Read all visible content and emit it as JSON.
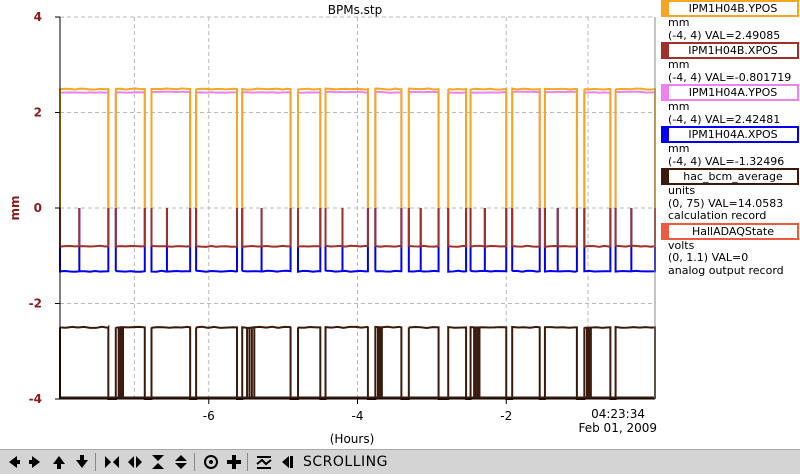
{
  "window": {
    "title": "BPMs.stp"
  },
  "chart_data": {
    "type": "line",
    "title": "BPMs.stp",
    "xlabel": "(Hours)",
    "ylabel": "mm",
    "xlim": [
      -8,
      0
    ],
    "ylim": [
      -4,
      4
    ],
    "x_ticks": [
      -6,
      -4,
      -2
    ],
    "x_tick_labels": [
      "-6",
      "-4",
      "-2"
    ],
    "y_ticks": [
      -4,
      -2,
      0,
      2,
      4
    ],
    "y_tick_labels": [
      "-4",
      "-2",
      "0",
      "2",
      "4"
    ],
    "timestamp_time": "04:23:34",
    "timestamp_date": "Feb 01, 2009",
    "grid": true,
    "segments": [
      [
        -8.0,
        -7.35
      ],
      [
        -7.25,
        -6.86
      ],
      [
        -6.77,
        -6.25
      ],
      [
        -6.17,
        -5.62
      ],
      [
        -5.55,
        -4.9
      ],
      [
        -4.8,
        -4.5
      ],
      [
        -4.43,
        -3.86
      ],
      [
        -3.76,
        -3.41
      ],
      [
        -3.31,
        -2.91
      ],
      [
        -2.78,
        -2.54
      ],
      [
        -2.48,
        -2.0
      ],
      [
        -1.92,
        -1.55
      ],
      [
        -1.48,
        -1.05
      ],
      [
        -0.95,
        -0.6
      ],
      [
        -0.53,
        0.0
      ]
    ],
    "series": [
      {
        "name": "IPM1H04B.YPOS",
        "color": "#f5a623",
        "on_value": 2.49085,
        "off_value": 0,
        "drop_type": "gap",
        "value": "2.49085"
      },
      {
        "name": "IPM1H04B.XPOS",
        "color": "#a0302a",
        "on_value": -0.801719,
        "off_value": 0,
        "drop_type": "spike",
        "value": "-0.801719"
      },
      {
        "name": "IPM1H04A.YPOS",
        "color": "#ee82ee",
        "on_value": 2.42481,
        "off_value": 0,
        "drop_type": "gap",
        "value": "2.42481"
      },
      {
        "name": "IPM1H04A.XPOS",
        "color": "#0000ee",
        "on_value": -1.32496,
        "off_value": 0,
        "drop_type": "spike",
        "value": "-1.32496"
      },
      {
        "name": "hac_bcm_average",
        "color": "#3a1a0a",
        "on_value": -2.5,
        "off_value": -4,
        "drop_type": "fill",
        "value": "14.0583"
      }
    ]
  },
  "legend": {
    "items": [
      {
        "name": "IPM1H04B.YPOS",
        "color": "#f5a623",
        "unit": "mm",
        "range_line": "(-4, 4) VAL=2.49085",
        "extra": ""
      },
      {
        "name": "IPM1H04B.XPOS",
        "color": "#a0302a",
        "unit": "mm",
        "range_line": "(-4, 4) VAL=-0.801719",
        "extra": ""
      },
      {
        "name": "IPM1H04A.YPOS",
        "color": "#ee82ee",
        "unit": "mm",
        "range_line": "(-4, 4) VAL=2.42481",
        "extra": ""
      },
      {
        "name": "IPM1H04A.XPOS",
        "color": "#0000ee",
        "unit": "mm",
        "range_line": "(-4, 4) VAL=-1.32496",
        "extra": ""
      },
      {
        "name": "hac_bcm_average",
        "color": "#3a1a0a",
        "unit": "units",
        "range_line": "(0, 75) VAL=14.0583",
        "extra": "calculation record"
      },
      {
        "name": "HallADAQState",
        "color": "#ee5a40",
        "unit": "volts",
        "range_line": "(0, 1.1) VAL=0",
        "extra": "analog output record"
      }
    ]
  },
  "toolbar": {
    "status": "SCROLLING",
    "buttons": [
      {
        "name": "scroll-left-button",
        "icon": "arrow-left-icon"
      },
      {
        "name": "scroll-right-button",
        "icon": "arrow-right-icon"
      },
      {
        "name": "scroll-up-button",
        "icon": "arrow-up-icon"
      },
      {
        "name": "scroll-down-button",
        "icon": "arrow-down-icon"
      },
      {
        "name": "zoom-in-x-button",
        "icon": "zoom-in-x-icon"
      },
      {
        "name": "zoom-out-x-button",
        "icon": "zoom-out-x-icon"
      },
      {
        "name": "zoom-in-y-button",
        "icon": "zoom-in-y-icon"
      },
      {
        "name": "zoom-out-y-button",
        "icon": "zoom-out-y-icon"
      },
      {
        "name": "autoscale-button",
        "icon": "target-icon"
      },
      {
        "name": "reset-button",
        "icon": "plus-icon"
      },
      {
        "name": "undo-zoom-button",
        "icon": "undo-zoom-icon"
      },
      {
        "name": "scroll-mode-button",
        "icon": "scroll-mode-icon"
      }
    ]
  }
}
